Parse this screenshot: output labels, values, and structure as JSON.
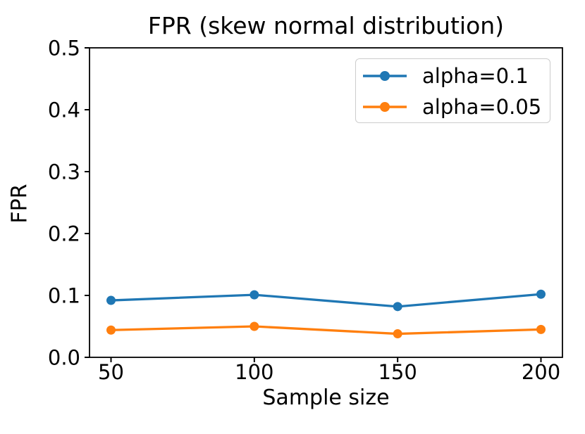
{
  "chart_data": {
    "type": "line",
    "title": "FPR (skew normal distribution)",
    "xlabel": "Sample size",
    "ylabel": "FPR",
    "x": [
      50,
      100,
      150,
      200
    ],
    "series": [
      {
        "name": "alpha=0.1",
        "color": "#1f77b4",
        "values": [
          0.092,
          0.101,
          0.082,
          0.102
        ]
      },
      {
        "name": "alpha=0.05",
        "color": "#ff7f0e",
        "values": [
          0.044,
          0.05,
          0.038,
          0.045
        ]
      }
    ],
    "xlim": [
      42.5,
      207.5
    ],
    "ylim": [
      0,
      0.5
    ],
    "xticks": [
      50,
      100,
      150,
      200
    ],
    "xtick_labels": [
      "50",
      "100",
      "150",
      "200"
    ],
    "yticks": [
      0.0,
      0.1,
      0.2,
      0.3,
      0.4,
      0.5
    ],
    "ytick_labels": [
      "0.0",
      "0.1",
      "0.2",
      "0.3",
      "0.4",
      "0.5"
    ],
    "grid": false,
    "legend_position": "upper right",
    "axis_color": "#000000"
  }
}
